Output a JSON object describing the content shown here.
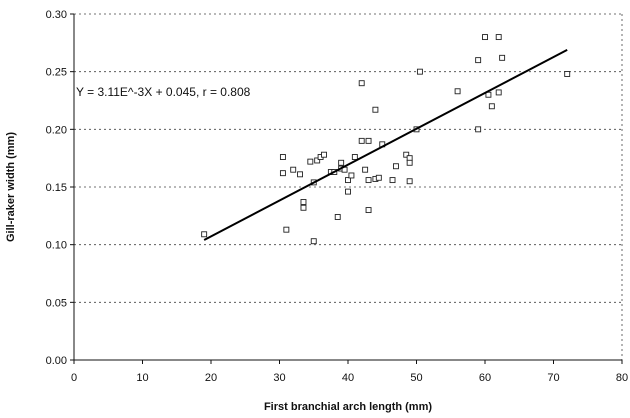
{
  "chart_data": {
    "type": "scatter",
    "title": "",
    "xlabel": "First branchial arch length (mm)",
    "ylabel": "Gill-raker width (mm)",
    "xlim": [
      0,
      80
    ],
    "ylim": [
      0,
      0.3
    ],
    "x_ticks": [
      0,
      10,
      20,
      30,
      40,
      50,
      60,
      70,
      80
    ],
    "y_ticks": [
      0.0,
      0.05,
      0.1,
      0.15,
      0.2,
      0.25,
      0.3
    ],
    "x_tick_labels": [
      "0",
      "10",
      "20",
      "30",
      "40",
      "50",
      "60",
      "70",
      "80"
    ],
    "y_tick_labels": [
      "0.00",
      "0.05",
      "0.10",
      "0.15",
      "0.20",
      "0.25",
      "0.30"
    ],
    "grid": {
      "y_major": true,
      "x_major": false,
      "style": "dashed"
    },
    "annotation": "Y = 3.11E^-3X + 0.045,    r = 0.808",
    "regression": {
      "slope": 0.00311,
      "intercept": 0.045,
      "x_range": [
        19,
        72
      ]
    },
    "points": [
      [
        19,
        0.109
      ],
      [
        30.5,
        0.162
      ],
      [
        30.5,
        0.176
      ],
      [
        31,
        0.113
      ],
      [
        32,
        0.165
      ],
      [
        33,
        0.161
      ],
      [
        33.5,
        0.137
      ],
      [
        33.5,
        0.132
      ],
      [
        34.5,
        0.172
      ],
      [
        35,
        0.154
      ],
      [
        35,
        0.103
      ],
      [
        35.5,
        0.173
      ],
      [
        36,
        0.176
      ],
      [
        36.5,
        0.178
      ],
      [
        37.5,
        0.163
      ],
      [
        38,
        0.163
      ],
      [
        38.5,
        0.124
      ],
      [
        39,
        0.171
      ],
      [
        39,
        0.166
      ],
      [
        39.5,
        0.165
      ],
      [
        40,
        0.156
      ],
      [
        40,
        0.146
      ],
      [
        40.5,
        0.16
      ],
      [
        41,
        0.176
      ],
      [
        42,
        0.19
      ],
      [
        42,
        0.24
      ],
      [
        42.5,
        0.165
      ],
      [
        43,
        0.13
      ],
      [
        43,
        0.156
      ],
      [
        43,
        0.19
      ],
      [
        44,
        0.217
      ],
      [
        44,
        0.157
      ],
      [
        44.5,
        0.158
      ],
      [
        45,
        0.187
      ],
      [
        46.5,
        0.156
      ],
      [
        47,
        0.168
      ],
      [
        48.5,
        0.178
      ],
      [
        49,
        0.175
      ],
      [
        49,
        0.155
      ],
      [
        49,
        0.171
      ],
      [
        50,
        0.2
      ],
      [
        50.5,
        0.25
      ],
      [
        56,
        0.233
      ],
      [
        59,
        0.26
      ],
      [
        59,
        0.2
      ],
      [
        60,
        0.28
      ],
      [
        60.5,
        0.23
      ],
      [
        61,
        0.22
      ],
      [
        62,
        0.28
      ],
      [
        62,
        0.232
      ],
      [
        62.5,
        0.262
      ],
      [
        72,
        0.248
      ]
    ]
  }
}
